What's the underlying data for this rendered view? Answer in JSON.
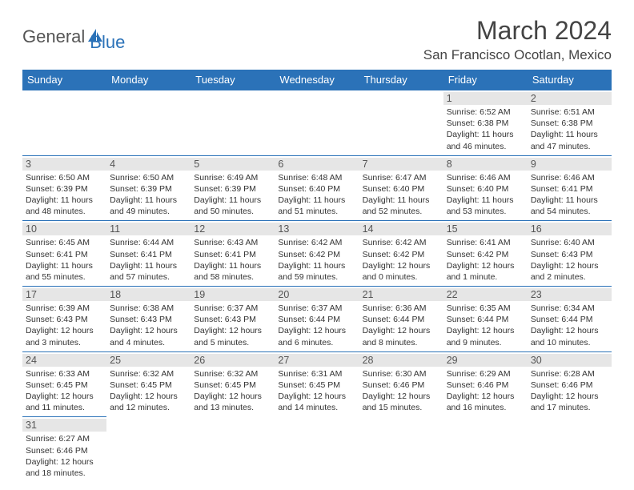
{
  "logo": {
    "textA": "General",
    "textB": "Blue"
  },
  "title": "March 2024",
  "location": "San Francisco Ocotlan, Mexico",
  "colors": {
    "header_bg": "#2b72b8",
    "header_text": "#ffffff",
    "daynum_bg": "#e6e6e6",
    "daynum_text": "#555555",
    "border": "#2b72b8",
    "body_text": "#333333",
    "title_text": "#444444"
  },
  "day_headers": [
    "Sunday",
    "Monday",
    "Tuesday",
    "Wednesday",
    "Thursday",
    "Friday",
    "Saturday"
  ],
  "weeks": [
    [
      null,
      null,
      null,
      null,
      null,
      {
        "n": "1",
        "sr": "6:52 AM",
        "ss": "6:38 PM",
        "dl": "11 hours and 46 minutes."
      },
      {
        "n": "2",
        "sr": "6:51 AM",
        "ss": "6:38 PM",
        "dl": "11 hours and 47 minutes."
      }
    ],
    [
      {
        "n": "3",
        "sr": "6:50 AM",
        "ss": "6:39 PM",
        "dl": "11 hours and 48 minutes."
      },
      {
        "n": "4",
        "sr": "6:50 AM",
        "ss": "6:39 PM",
        "dl": "11 hours and 49 minutes."
      },
      {
        "n": "5",
        "sr": "6:49 AM",
        "ss": "6:39 PM",
        "dl": "11 hours and 50 minutes."
      },
      {
        "n": "6",
        "sr": "6:48 AM",
        "ss": "6:40 PM",
        "dl": "11 hours and 51 minutes."
      },
      {
        "n": "7",
        "sr": "6:47 AM",
        "ss": "6:40 PM",
        "dl": "11 hours and 52 minutes."
      },
      {
        "n": "8",
        "sr": "6:46 AM",
        "ss": "6:40 PM",
        "dl": "11 hours and 53 minutes."
      },
      {
        "n": "9",
        "sr": "6:46 AM",
        "ss": "6:41 PM",
        "dl": "11 hours and 54 minutes."
      }
    ],
    [
      {
        "n": "10",
        "sr": "6:45 AM",
        "ss": "6:41 PM",
        "dl": "11 hours and 55 minutes."
      },
      {
        "n": "11",
        "sr": "6:44 AM",
        "ss": "6:41 PM",
        "dl": "11 hours and 57 minutes."
      },
      {
        "n": "12",
        "sr": "6:43 AM",
        "ss": "6:41 PM",
        "dl": "11 hours and 58 minutes."
      },
      {
        "n": "13",
        "sr": "6:42 AM",
        "ss": "6:42 PM",
        "dl": "11 hours and 59 minutes."
      },
      {
        "n": "14",
        "sr": "6:42 AM",
        "ss": "6:42 PM",
        "dl": "12 hours and 0 minutes."
      },
      {
        "n": "15",
        "sr": "6:41 AM",
        "ss": "6:42 PM",
        "dl": "12 hours and 1 minute."
      },
      {
        "n": "16",
        "sr": "6:40 AM",
        "ss": "6:43 PM",
        "dl": "12 hours and 2 minutes."
      }
    ],
    [
      {
        "n": "17",
        "sr": "6:39 AM",
        "ss": "6:43 PM",
        "dl": "12 hours and 3 minutes."
      },
      {
        "n": "18",
        "sr": "6:38 AM",
        "ss": "6:43 PM",
        "dl": "12 hours and 4 minutes."
      },
      {
        "n": "19",
        "sr": "6:37 AM",
        "ss": "6:43 PM",
        "dl": "12 hours and 5 minutes."
      },
      {
        "n": "20",
        "sr": "6:37 AM",
        "ss": "6:44 PM",
        "dl": "12 hours and 6 minutes."
      },
      {
        "n": "21",
        "sr": "6:36 AM",
        "ss": "6:44 PM",
        "dl": "12 hours and 8 minutes."
      },
      {
        "n": "22",
        "sr": "6:35 AM",
        "ss": "6:44 PM",
        "dl": "12 hours and 9 minutes."
      },
      {
        "n": "23",
        "sr": "6:34 AM",
        "ss": "6:44 PM",
        "dl": "12 hours and 10 minutes."
      }
    ],
    [
      {
        "n": "24",
        "sr": "6:33 AM",
        "ss": "6:45 PM",
        "dl": "12 hours and 11 minutes."
      },
      {
        "n": "25",
        "sr": "6:32 AM",
        "ss": "6:45 PM",
        "dl": "12 hours and 12 minutes."
      },
      {
        "n": "26",
        "sr": "6:32 AM",
        "ss": "6:45 PM",
        "dl": "12 hours and 13 minutes."
      },
      {
        "n": "27",
        "sr": "6:31 AM",
        "ss": "6:45 PM",
        "dl": "12 hours and 14 minutes."
      },
      {
        "n": "28",
        "sr": "6:30 AM",
        "ss": "6:46 PM",
        "dl": "12 hours and 15 minutes."
      },
      {
        "n": "29",
        "sr": "6:29 AM",
        "ss": "6:46 PM",
        "dl": "12 hours and 16 minutes."
      },
      {
        "n": "30",
        "sr": "6:28 AM",
        "ss": "6:46 PM",
        "dl": "12 hours and 17 minutes."
      }
    ],
    [
      {
        "n": "31",
        "sr": "6:27 AM",
        "ss": "6:46 PM",
        "dl": "12 hours and 18 minutes."
      },
      null,
      null,
      null,
      null,
      null,
      null
    ]
  ],
  "labels": {
    "sunrise": "Sunrise: ",
    "sunset": "Sunset: ",
    "daylight": "Daylight: "
  }
}
